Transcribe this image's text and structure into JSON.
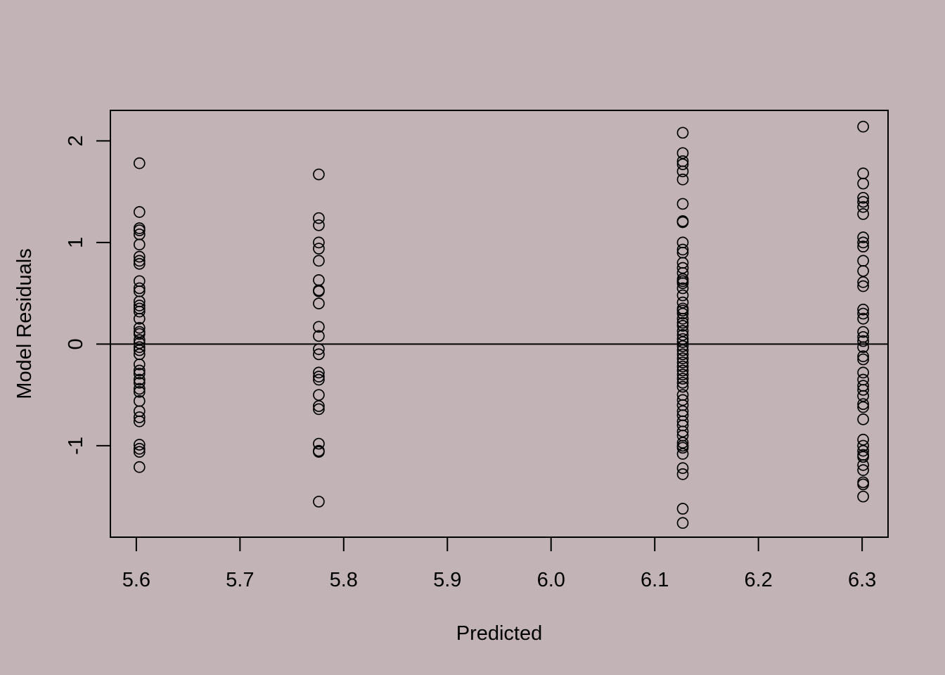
{
  "background_color": "#C2B3B7",
  "chart_data": {
    "type": "scatter",
    "title": "",
    "xlabel": "Predicted",
    "ylabel": "Model Residuals",
    "xlim": [
      5.575,
      6.325
    ],
    "ylim": [
      -1.9,
      2.3
    ],
    "x_ticks": [
      5.6,
      5.7,
      5.8,
      5.9,
      6.0,
      6.1,
      6.2,
      6.3
    ],
    "x_tick_labels": [
      "5.6",
      "5.7",
      "5.8",
      "5.9",
      "6.0",
      "6.1",
      "6.2",
      "6.3"
    ],
    "y_ticks": [
      -1,
      0,
      1,
      2
    ],
    "y_tick_labels": [
      "-1",
      "0",
      "1",
      "2"
    ],
    "reference_line_y": 0,
    "marker": "open-circle",
    "grid": false,
    "legend": "none",
    "series": [
      {
        "x_value": 5.603,
        "y_values": [
          1.78,
          1.3,
          1.14,
          1.12,
          1.08,
          0.98,
          0.86,
          0.82,
          0.79,
          0.62,
          0.55,
          0.52,
          0.42,
          0.38,
          0.35,
          0.32,
          0.25,
          0.16,
          0.12,
          0.1,
          0.04,
          0.01,
          -0.03,
          -0.06,
          -0.1,
          -0.2,
          -0.26,
          -0.29,
          -0.35,
          -0.38,
          -0.44,
          -0.47,
          -0.56,
          -0.66,
          -0.72,
          -0.76,
          -0.99,
          -1.03,
          -1.06,
          -1.21
        ]
      },
      {
        "x_value": 5.776,
        "y_values": [
          1.67,
          1.24,
          1.17,
          1.0,
          0.94,
          0.82,
          0.63,
          0.53,
          0.52,
          0.4,
          0.17,
          0.08,
          -0.05,
          -0.1,
          -0.28,
          -0.32,
          -0.35,
          -0.5,
          -0.61,
          -0.64,
          -0.98,
          -1.05,
          -1.06,
          -1.55
        ]
      },
      {
        "x_value": 6.127,
        "y_values": [
          2.08,
          1.88,
          1.8,
          1.77,
          1.7,
          1.62,
          1.38,
          1.21,
          1.2,
          1.0,
          0.93,
          0.9,
          0.8,
          0.75,
          0.7,
          0.64,
          0.62,
          0.6,
          0.55,
          0.48,
          0.41,
          0.35,
          0.33,
          0.3,
          0.25,
          0.21,
          0.18,
          0.13,
          0.09,
          0.05,
          0.02,
          -0.02,
          -0.06,
          -0.1,
          -0.14,
          -0.18,
          -0.22,
          -0.26,
          -0.3,
          -0.34,
          -0.38,
          -0.42,
          -0.5,
          -0.55,
          -0.6,
          -0.66,
          -0.7,
          -0.76,
          -0.8,
          -0.86,
          -0.9,
          -0.97,
          -1.0,
          -1.02,
          -1.08,
          -1.22,
          -1.28,
          -1.62,
          -1.76
        ]
      },
      {
        "x_value": 6.301,
        "y_values": [
          2.14,
          1.68,
          1.58,
          1.44,
          1.4,
          1.35,
          1.28,
          1.05,
          1.0,
          0.96,
          0.82,
          0.72,
          0.61,
          0.57,
          0.34,
          0.3,
          0.25,
          0.12,
          0.07,
          0.03,
          -0.03,
          -0.12,
          -0.15,
          -0.28,
          -0.35,
          -0.41,
          -0.45,
          -0.51,
          -0.59,
          -0.62,
          -0.74,
          -0.94,
          -1.0,
          -1.05,
          -1.09,
          -1.11,
          -1.19,
          -1.24,
          -1.36,
          -1.38,
          -1.5
        ]
      }
    ]
  }
}
